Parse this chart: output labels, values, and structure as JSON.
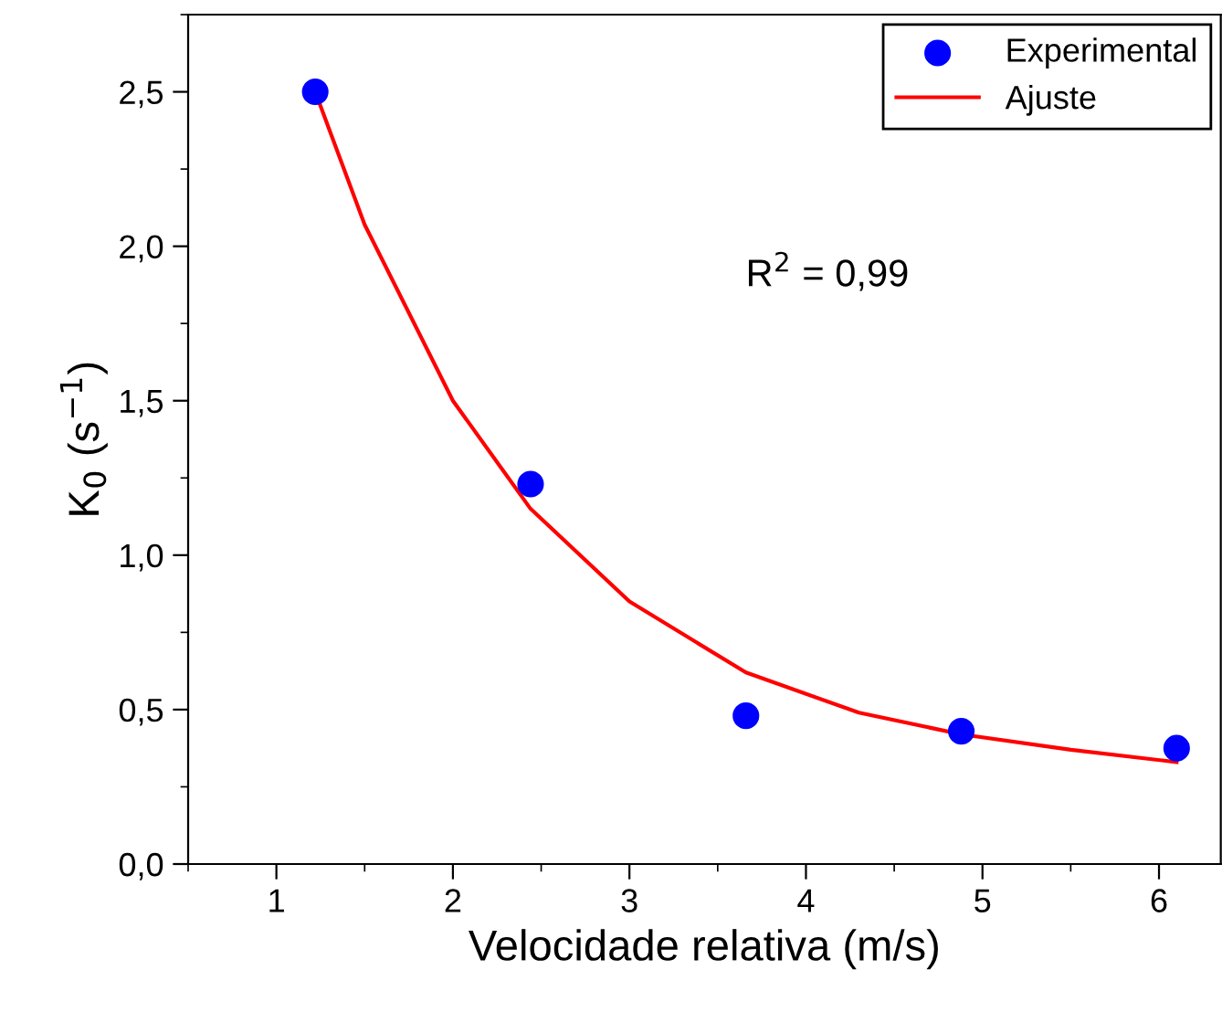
{
  "chart_data": {
    "type": "scatter",
    "xlabel": "Velocidade relativa (m/s)",
    "ylabel": "K$_{0}$ (s$^{−1}$)",
    "series": [
      {
        "name": "Experimental",
        "color": "#0000ff",
        "marker": "circle",
        "x": [
          1.22,
          2.44,
          3.66,
          4.88,
          6.1
        ],
        "values": [
          2.5,
          1.23,
          0.48,
          0.43,
          0.375
        ]
      },
      {
        "name": "Ajuste",
        "type": "line",
        "color": "#ff0000",
        "marker": "none",
        "line_style": "solid",
        "x": [
          1.22,
          1.5,
          2,
          2.44,
          3,
          3.66,
          4.3,
          4.88,
          5.5,
          6.1
        ],
        "values": [
          2.5,
          2.07,
          1.5,
          1.15,
          0.85,
          0.62,
          0.49,
          0.42,
          0.37,
          0.33
        ]
      }
    ],
    "xlim": [
      0.5,
      6.35
    ],
    "xticks": [
      1,
      2,
      3,
      4,
      5,
      6
    ],
    "ylim": [
      0,
      2.75
    ],
    "yticks": [
      {
        "value": 0,
        "label": "0,0"
      },
      {
        "value": 0.5,
        "label": "0,5"
      },
      {
        "value": 1,
        "label": "1,0"
      },
      {
        "value": 1.5,
        "label": "1,5"
      },
      {
        "value": 2,
        "label": "2,0"
      },
      {
        "value": 2.5,
        "label": "2,5"
      }
    ],
    "annotations": [
      "R$^{2}$ = 0,99"
    ],
    "legend": "top right",
    "grid": false
  }
}
